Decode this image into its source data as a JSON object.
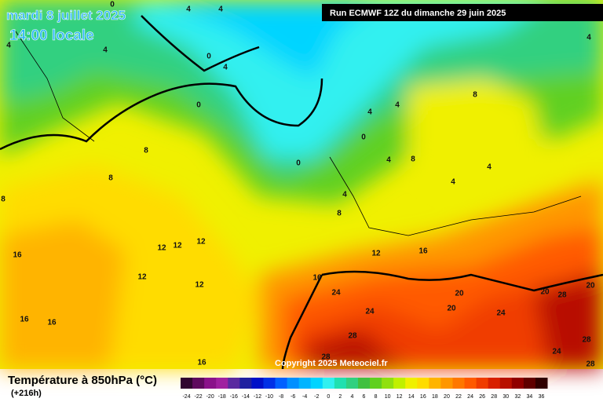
{
  "header": {
    "date": "mardi 8 juillet 2025",
    "time": "14:00 locale",
    "run": "Run ECMWF 12Z du dimanche 29 juin 2025"
  },
  "copyright": "Copyright 2025 Meteociel.fr",
  "legend": {
    "title": "Température à 850hPa (°C)",
    "lead": "(+216h)",
    "values": [
      -24,
      -22,
      -20,
      -18,
      -16,
      -14,
      -12,
      -10,
      -8,
      -6,
      -4,
      -2,
      0,
      2,
      4,
      6,
      8,
      10,
      12,
      14,
      16,
      18,
      20,
      22,
      24,
      26,
      28,
      30,
      32,
      34,
      36
    ],
    "colors": [
      "#300630",
      "#5e0a5e",
      "#8a128a",
      "#a020a0",
      "#5a2aa0",
      "#2020a0",
      "#0010c8",
      "#0030e6",
      "#0060ff",
      "#0090ff",
      "#00b4ff",
      "#00d4ff",
      "#30f0f0",
      "#20e0b0",
      "#30d080",
      "#40c040",
      "#60d020",
      "#90e010",
      "#c0f000",
      "#f0f000",
      "#ffdc00",
      "#ffb400",
      "#ff9600",
      "#ff7800",
      "#ff5a00",
      "#f03c00",
      "#d82000",
      "#b81000",
      "#900000",
      "#600000",
      "#300000"
    ]
  },
  "contour_labels": [
    0,
    4,
    4,
    4,
    4,
    4,
    0,
    4,
    0,
    8,
    4,
    4,
    0,
    8,
    4,
    8,
    0,
    8,
    4,
    4,
    4,
    8,
    8,
    12,
    12,
    12,
    12,
    16,
    12,
    16,
    16,
    12,
    24,
    20,
    20,
    28,
    20,
    24,
    20,
    24,
    16,
    16,
    28,
    28,
    24,
    16,
    28,
    28
  ]
}
